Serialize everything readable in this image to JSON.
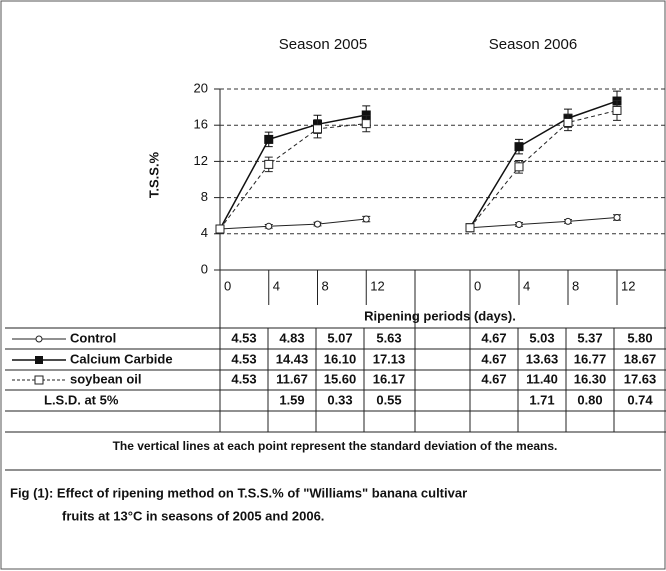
{
  "chart_data": [
    {
      "type": "line",
      "title": "Season 2005",
      "ylabel": "T.S.S.%",
      "xlabel": "Ripening periods (days).",
      "x": [
        0,
        4,
        8,
        12
      ],
      "xlim": [
        0,
        16
      ],
      "xticks": [
        0,
        4,
        8,
        12
      ],
      "ylim": [
        0,
        20
      ],
      "yticks": [
        0,
        4,
        8,
        12,
        16,
        20
      ],
      "grid": true,
      "series": [
        {
          "color": "#222222",
          "marker": "circle-open",
          "dashed": false,
          "values": [
            4.53,
            4.83,
            5.07,
            5.63
          ],
          "errors": [
            0.2,
            0.2,
            0.2,
            0.3
          ]
        },
        {
          "color": "#111111",
          "marker": "square-filled",
          "dashed": false,
          "values": [
            4.53,
            14.43,
            16.1,
            17.13
          ],
          "errors": [
            0.3,
            0.8,
            1.0,
            1.0
          ]
        },
        {
          "color": "#222222",
          "marker": "square-open",
          "dashed": true,
          "values": [
            4.53,
            11.67,
            15.6,
            16.17
          ],
          "errors": [
            0.3,
            0.8,
            1.0,
            0.9
          ]
        }
      ]
    },
    {
      "type": "line",
      "title": "Season 2006",
      "x": [
        0,
        4,
        8,
        12
      ],
      "xlim": [
        0,
        16
      ],
      "xticks": [
        0,
        4,
        8,
        12
      ],
      "ylim": [
        0,
        20
      ],
      "grid": true,
      "series": [
        {
          "color": "#222222",
          "marker": "circle-open",
          "dashed": false,
          "values": [
            4.67,
            5.03,
            5.37,
            5.8
          ],
          "errors": [
            0.2,
            0.2,
            0.2,
            0.3
          ]
        },
        {
          "color": "#111111",
          "marker": "square-filled",
          "dashed": false,
          "values": [
            4.67,
            13.63,
            16.77,
            18.67
          ],
          "errors": [
            0.3,
            0.8,
            1.0,
            1.1
          ]
        },
        {
          "color": "#222222",
          "marker": "square-open",
          "dashed": true,
          "values": [
            4.67,
            11.4,
            16.3,
            17.63
          ],
          "errors": [
            0.3,
            0.7,
            0.9,
            1.1
          ]
        }
      ]
    }
  ],
  "table": {
    "rows": [
      {
        "label": "Control",
        "s2005": [
          "4.53",
          "4.83",
          "5.07",
          "5.63"
        ],
        "s2006": [
          "4.67",
          "5.03",
          "5.37",
          "5.80"
        ]
      },
      {
        "label": "Calcium Carbide",
        "s2005": [
          "4.53",
          "14.43",
          "16.10",
          "17.13"
        ],
        "s2006": [
          "4.67",
          "13.63",
          "16.77",
          "18.67"
        ]
      },
      {
        "label": "soybean oil",
        "s2005": [
          "4.53",
          "11.67",
          "15.60",
          "16.17"
        ],
        "s2006": [
          "4.67",
          "11.40",
          "16.30",
          "17.63"
        ]
      },
      {
        "label": "L.S.D. at 5%",
        "s2005": [
          null,
          "1.59",
          "0.33",
          "0.55"
        ],
        "s2006": [
          null,
          "1.71",
          "0.80",
          "0.74"
        ]
      }
    ]
  },
  "note": "The vertical lines at each point represent the standard deviation of the means.",
  "caption": [
    "Fig (1): Effect of ripening method on T.S.S.% of  \"Williams\" banana cultivar",
    "fruits at 13°C in seasons of 2005 and 2006."
  ]
}
